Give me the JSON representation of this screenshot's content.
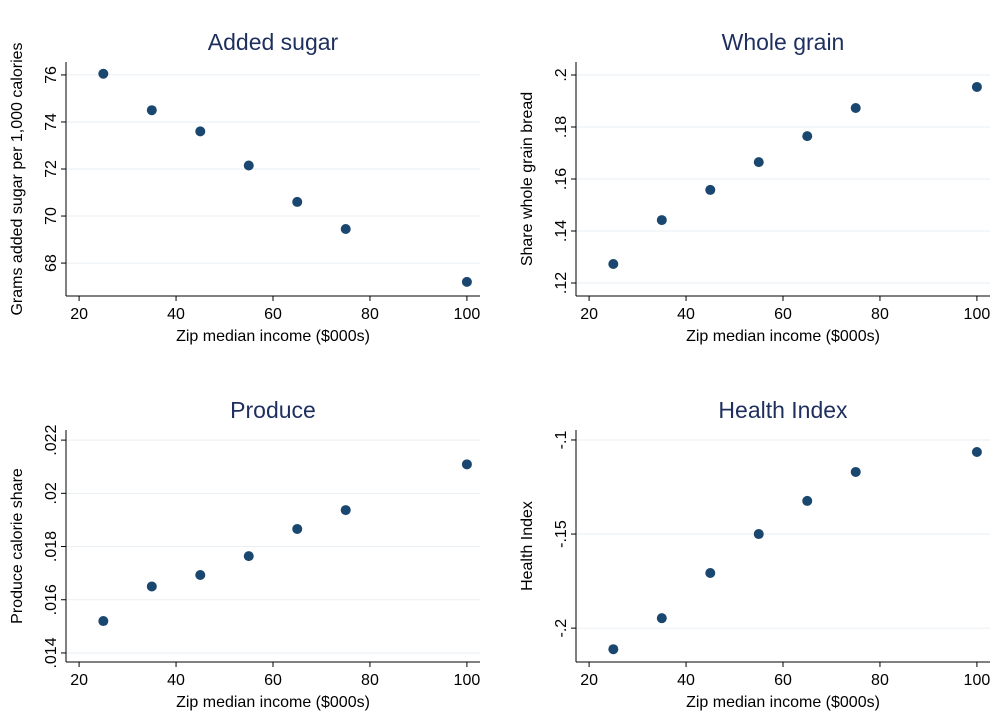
{
  "chart_data": [
    {
      "type": "scatter",
      "title": "Added sugar",
      "x_label": "Zip median income ($000s)",
      "y_label": "Grams added sugar per 1,000 calories",
      "x": [
        25,
        35,
        45,
        55,
        65,
        75,
        100
      ],
      "values": [
        76.05,
        74.5,
        73.6,
        72.15,
        70.6,
        69.45,
        67.2
      ],
      "color": "#1a476f",
      "xlim": [
        17.3,
        102.7
      ],
      "xticks": [
        20,
        40,
        60,
        80,
        100
      ],
      "ylim": [
        66.6,
        76.55
      ],
      "yticks": [
        68,
        70,
        72,
        74,
        76
      ],
      "grid": true
    },
    {
      "type": "scatter",
      "title": "Whole grain",
      "x_label": "Zip median income ($000s)",
      "y_label": "Share whole grain bread",
      "x": [
        25,
        35,
        45,
        55,
        65,
        75,
        100
      ],
      "values": [
        0.1273,
        0.1442,
        0.1558,
        0.1665,
        0.1765,
        0.1873,
        0.1954
      ],
      "color": "#1a476f",
      "xlim": [
        17.3,
        102.7
      ],
      "xticks": [
        20,
        40,
        60,
        80,
        100
      ],
      "ylim": [
        0.115,
        0.205
      ],
      "yticks": [
        {
          "value": 0.12,
          "label": ".12"
        },
        {
          "value": 0.14,
          "label": ".14"
        },
        {
          "value": 0.16,
          "label": ".16"
        },
        {
          "value": 0.18,
          "label": ".18"
        },
        {
          "value": 0.2,
          "label": ".2"
        }
      ],
      "grid": true
    },
    {
      "type": "scatter",
      "title": "Produce",
      "x_label": "Zip median income ($000s)",
      "y_label": "Produce calorie share",
      "x": [
        25,
        35,
        45,
        55,
        65,
        75,
        100
      ],
      "values": [
        0.0152,
        0.0165,
        0.01693,
        0.01764,
        0.01866,
        0.01937,
        0.02109
      ],
      "color": "#1a476f",
      "xlim": [
        17.3,
        102.7
      ],
      "xticks": [
        20,
        40,
        60,
        80,
        100
      ],
      "ylim": [
        0.01366,
        0.02238
      ],
      "yticks": [
        {
          "value": 0.014,
          "label": ".014"
        },
        {
          "value": 0.016,
          "label": ".016"
        },
        {
          "value": 0.018,
          "label": ".018"
        },
        {
          "value": 0.02,
          "label": ".02"
        },
        {
          "value": 0.022,
          "label": ".022"
        }
      ],
      "grid": true
    },
    {
      "type": "scatter",
      "title": "Health Index",
      "x_label": "Zip median income ($000s)",
      "y_label": "Health Index",
      "x": [
        25,
        35,
        45,
        55,
        65,
        75,
        100
      ],
      "values": [
        -0.2112,
        -0.1947,
        -0.1707,
        -0.15,
        -0.1324,
        -0.117,
        -0.1064
      ],
      "color": "#1a476f",
      "xlim": [
        17.3,
        102.7
      ],
      "xticks": [
        20,
        40,
        60,
        80,
        100
      ],
      "ylim": [
        -0.218,
        -0.0947
      ],
      "yticks": [
        {
          "value": -0.2,
          "label": "-.2"
        },
        {
          "value": -0.15,
          "label": "-.15"
        },
        {
          "value": -0.1,
          "label": "-.1"
        }
      ],
      "grid": true
    }
  ]
}
